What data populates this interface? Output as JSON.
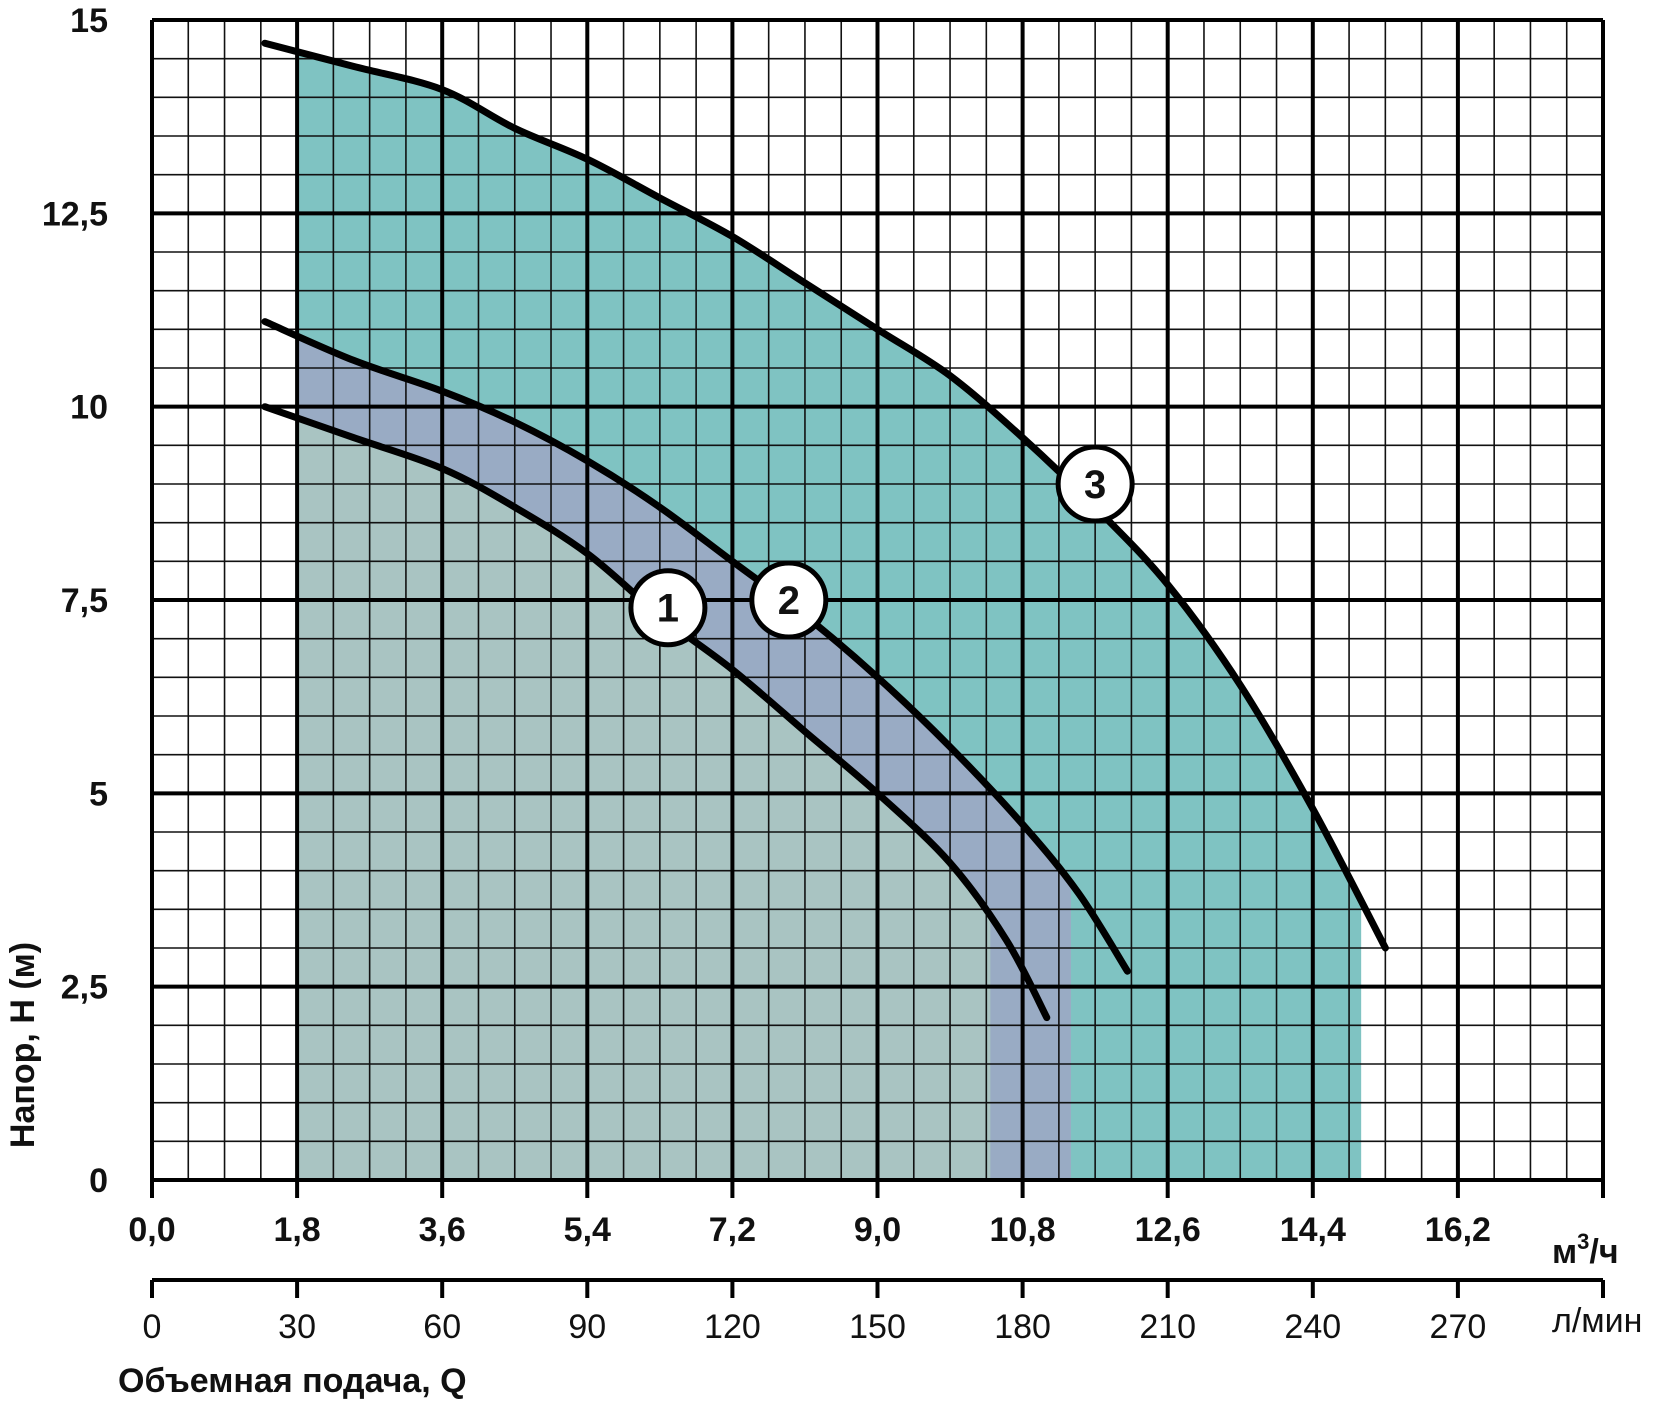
{
  "chart_data": {
    "type": "line",
    "ylabel": "Напор, H (м)",
    "xlabel": "Объемная подача, Q",
    "x_unit_top": "м³/ч",
    "x_unit_top_base": "м",
    "x_unit_top_sup": "3",
    "x_unit_top_tail": "/ч",
    "x_unit_bottom": "л/мин",
    "ylim": [
      0,
      15
    ],
    "xlim": [
      0,
      18
    ],
    "grid": true,
    "y_ticks": [
      "0",
      "2,5",
      "5",
      "7,5",
      "10",
      "12,5",
      "15"
    ],
    "x_ticks_m3h": [
      "0,0",
      "1,8",
      "3,6",
      "5,4",
      "7,2",
      "9,0",
      "10,8",
      "12,6",
      "14,4",
      "16,2"
    ],
    "x_ticks_lmin": [
      "0",
      "30",
      "60",
      "90",
      "120",
      "150",
      "180",
      "210",
      "240",
      "270"
    ],
    "series": [
      {
        "name": "1",
        "color": "#000000",
        "fill": "#a9c4c2",
        "x": [
          1.4,
          2.5,
          3.6,
          4.5,
          5.4,
          6.3,
          7.2,
          8.1,
          9.0,
          9.9,
          10.6,
          11.1
        ],
        "y": [
          10.0,
          9.6,
          9.2,
          8.7,
          8.1,
          7.3,
          6.6,
          5.8,
          5.0,
          4.1,
          3.1,
          2.1
        ],
        "fill_to_x": 10.4
      },
      {
        "name": "2",
        "color": "#000000",
        "fill": "#99abc4",
        "x": [
          1.4,
          2.5,
          3.6,
          4.5,
          5.4,
          6.3,
          7.2,
          8.1,
          9.0,
          9.9,
          10.8,
          11.5,
          12.1
        ],
        "y": [
          11.1,
          10.6,
          10.2,
          9.8,
          9.3,
          8.7,
          8.0,
          7.3,
          6.5,
          5.6,
          4.6,
          3.7,
          2.7
        ],
        "fill_to_x": 11.4
      },
      {
        "name": "3",
        "color": "#000000",
        "fill": "#7fc3c2",
        "x": [
          1.4,
          2.5,
          3.6,
          4.5,
          5.4,
          6.3,
          7.2,
          8.1,
          9.0,
          9.9,
          10.8,
          11.7,
          12.6,
          13.5,
          14.4,
          15.3
        ],
        "y": [
          14.7,
          14.4,
          14.1,
          13.6,
          13.2,
          12.7,
          12.2,
          11.6,
          11.0,
          10.4,
          9.6,
          8.7,
          7.7,
          6.4,
          4.8,
          3.0
        ],
        "fill_to_x": 15.0
      }
    ],
    "markers": [
      {
        "label": "1",
        "x": 6.4,
        "y": 7.4
      },
      {
        "label": "2",
        "x": 7.9,
        "y": 7.5
      },
      {
        "label": "3",
        "x": 11.7,
        "y": 9.0
      }
    ]
  }
}
